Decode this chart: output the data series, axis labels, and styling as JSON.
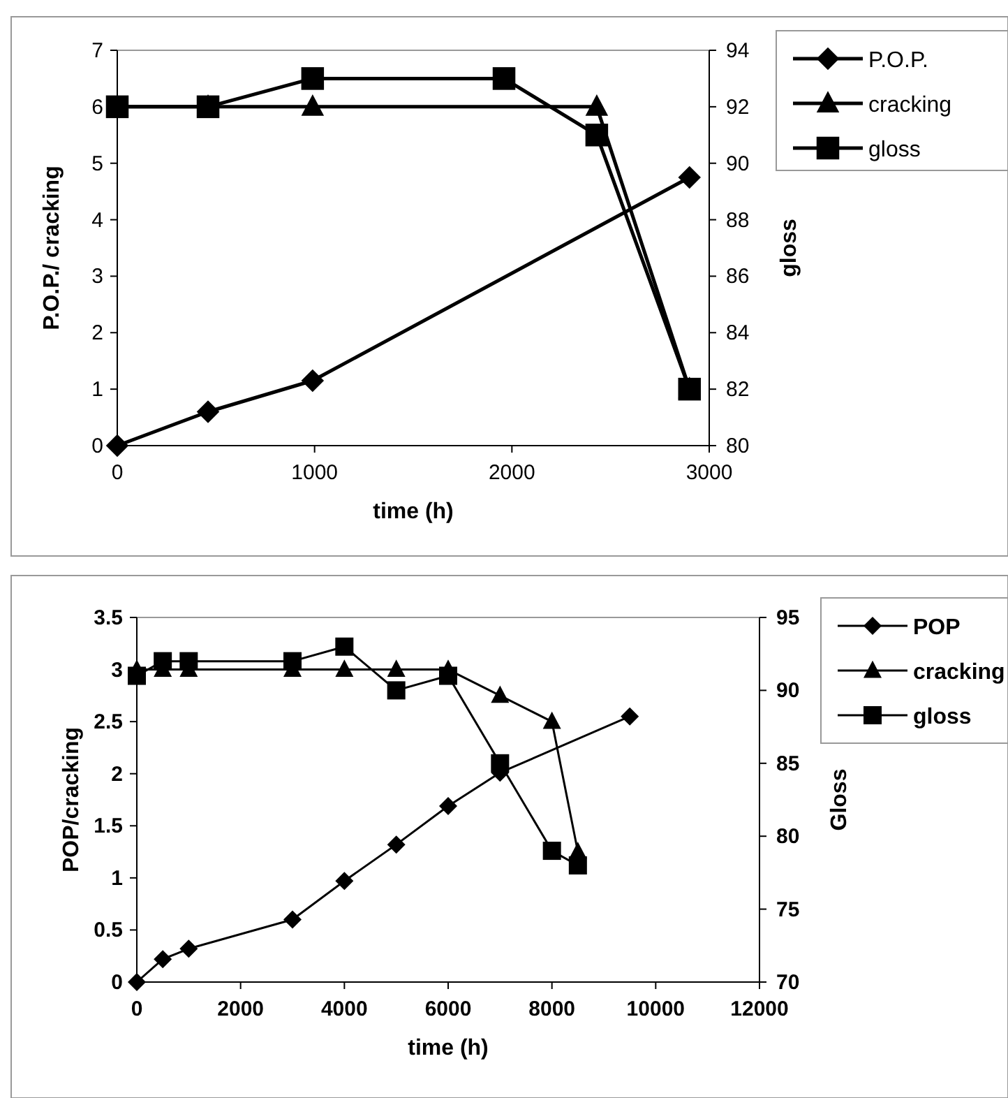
{
  "chart_data": [
    {
      "type": "line",
      "xlabel": "time (h)",
      "ylabel": "P.O.P./ cracking",
      "y2label": "gloss",
      "xlim": [
        0,
        3000
      ],
      "xticks": [
        0,
        1000,
        2000,
        3000
      ],
      "ylim": [
        0,
        7
      ],
      "yticks": [
        0,
        1,
        2,
        3,
        4,
        5,
        6,
        7
      ],
      "y2lim": [
        80,
        94
      ],
      "y2ticks": [
        80,
        82,
        84,
        86,
        88,
        90,
        92,
        94
      ],
      "grid": false,
      "legend": "top right",
      "line_style": "solid",
      "series": [
        {
          "name": "P.O.P.",
          "color": "#000000",
          "marker": "diamond",
          "x": [
            0,
            460,
            990,
            2900
          ],
          "values": [
            0,
            0.6,
            1.15,
            4.75
          ]
        },
        {
          "name": "cracking",
          "color": "#000000",
          "marker": "triangle",
          "x": [
            0,
            460,
            990,
            2430,
            2900
          ],
          "values": [
            6,
            6,
            6,
            6,
            1
          ]
        },
        {
          "name": "gloss",
          "color": "#000000",
          "marker": "square",
          "axis": "y2",
          "x": [
            0,
            460,
            990,
            1960,
            2430,
            2900
          ],
          "values": [
            92,
            92,
            93,
            93,
            91,
            82
          ]
        }
      ]
    },
    {
      "type": "line",
      "xlabel": "time (h)",
      "ylabel": "POP/cracking",
      "y2label": "Gloss",
      "xlim": [
        0,
        12000
      ],
      "xticks": [
        0,
        2000,
        4000,
        6000,
        8000,
        10000,
        12000
      ],
      "ylim": [
        0,
        3.5
      ],
      "yticks": [
        0,
        0.5,
        1,
        1.5,
        2,
        2.5,
        3,
        3.5
      ],
      "y2lim": [
        70,
        95
      ],
      "y2ticks": [
        70,
        75,
        80,
        85,
        90,
        95
      ],
      "grid": false,
      "legend": "top right",
      "line_style": "solid",
      "series": [
        {
          "name": "POP",
          "color": "#000000",
          "marker": "diamond",
          "x": [
            0,
            500,
            1000,
            3000,
            4000,
            5000,
            6000,
            7000,
            9500
          ],
          "values": [
            0,
            0.22,
            0.32,
            0.6,
            0.97,
            1.32,
            1.69,
            2.01,
            2.55
          ]
        },
        {
          "name": "cracking",
          "color": "#000000",
          "marker": "triangle",
          "x": [
            0,
            500,
            1000,
            3000,
            4000,
            5000,
            6000,
            7000,
            8000,
            8500
          ],
          "values": [
            3,
            3,
            3,
            3,
            3,
            3,
            3,
            2.75,
            2.5,
            1.25
          ]
        },
        {
          "name": "gloss",
          "color": "#000000",
          "marker": "square",
          "axis": "y2",
          "x": [
            0,
            500,
            1000,
            3000,
            4000,
            5000,
            6000,
            7000,
            8000,
            8500
          ],
          "values": [
            91,
            92,
            92,
            92,
            93,
            90,
            91,
            85,
            79,
            78
          ]
        }
      ]
    }
  ]
}
